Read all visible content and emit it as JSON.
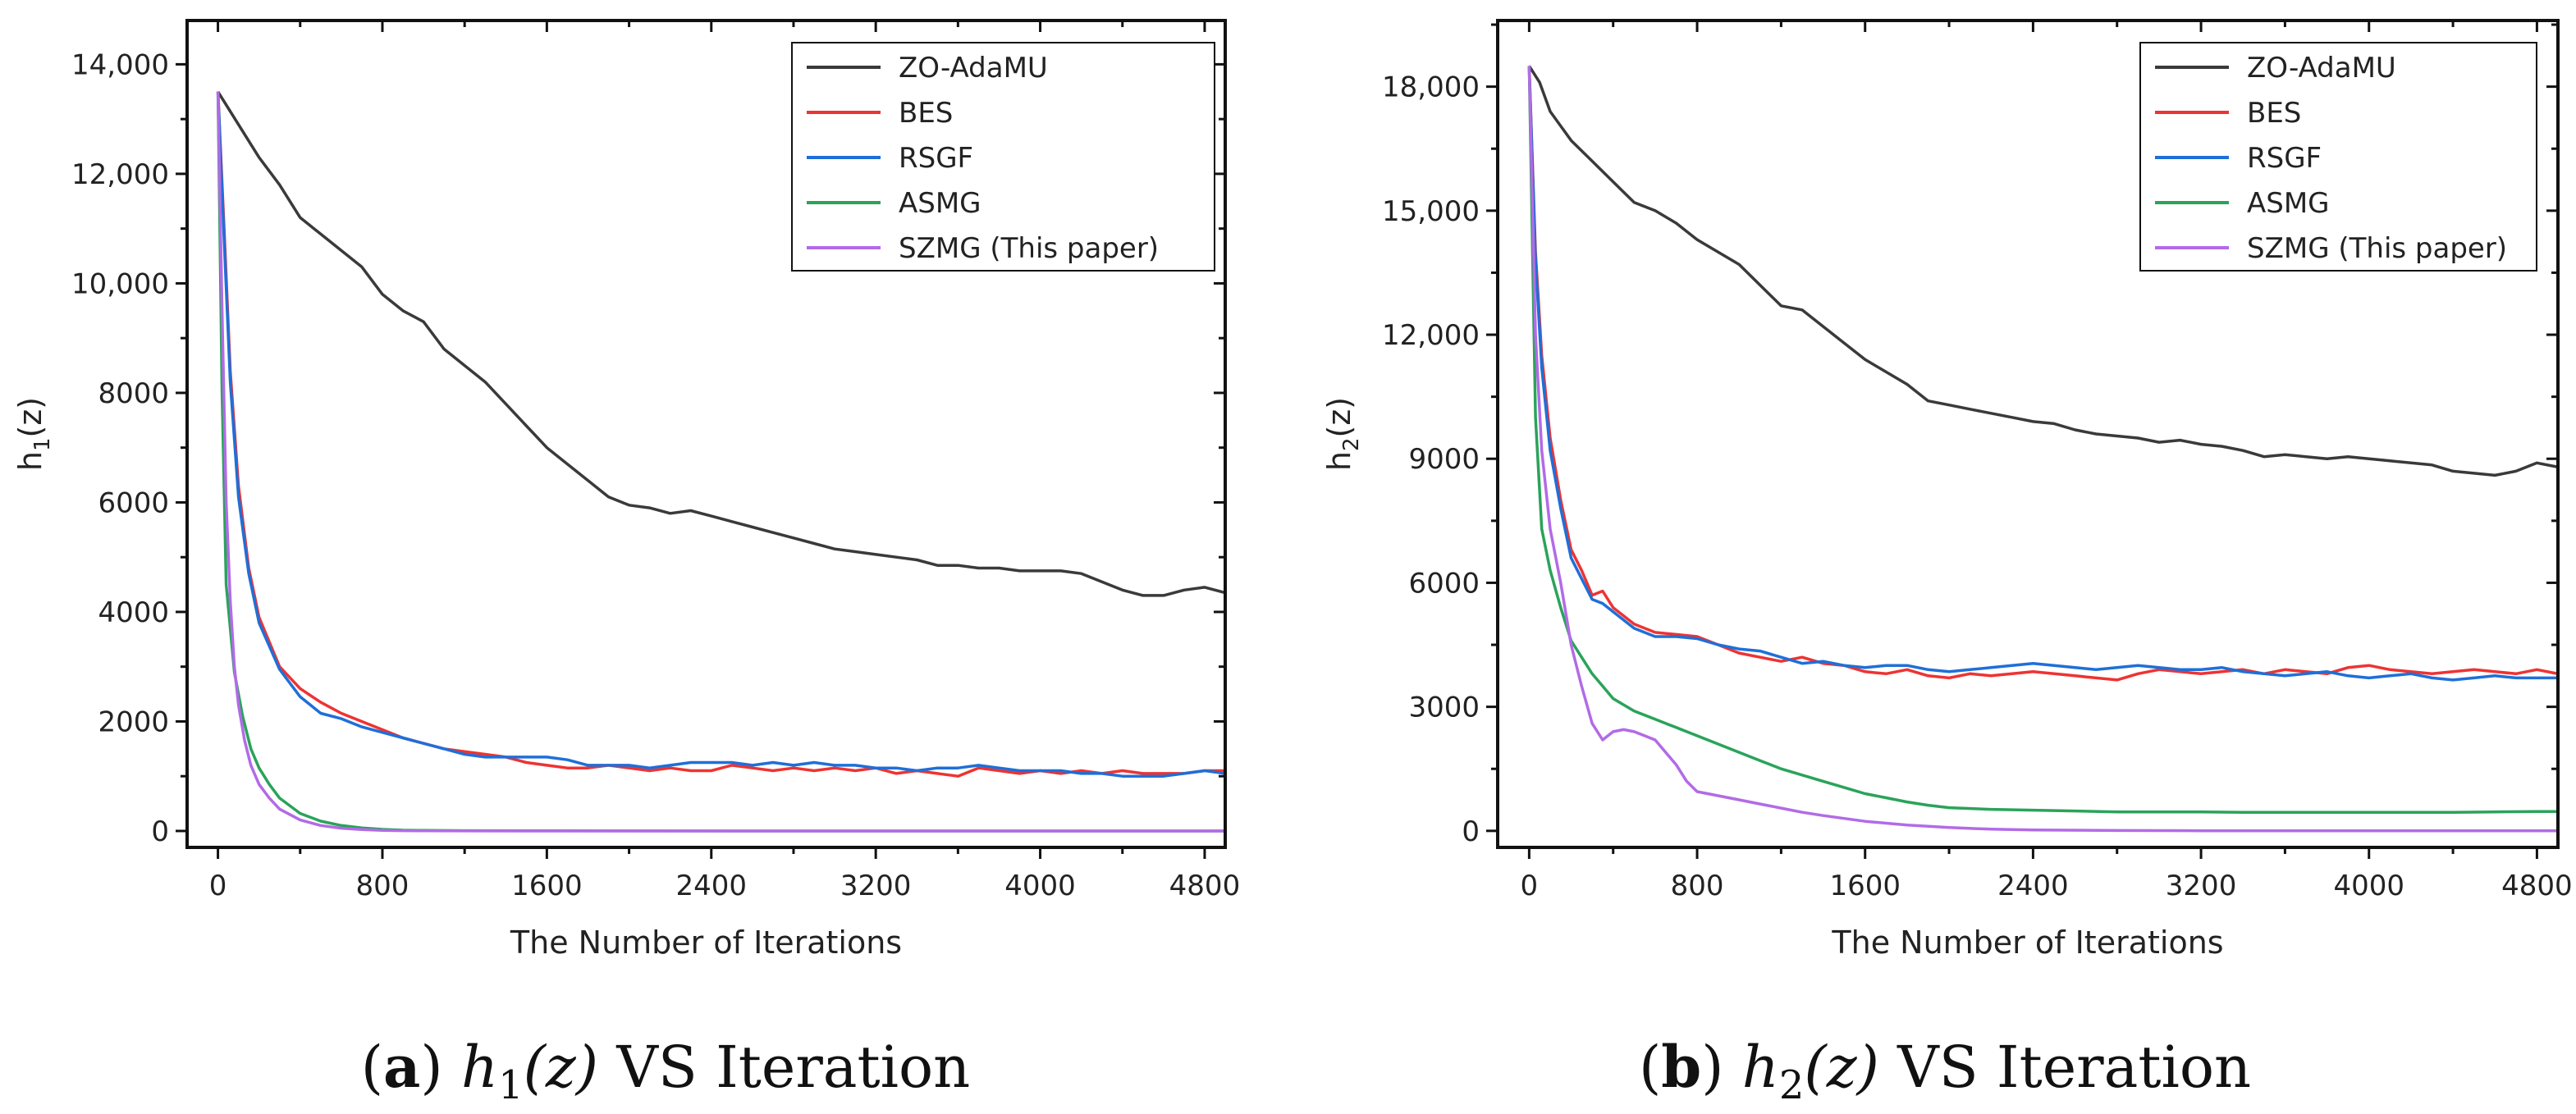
{
  "colors": {
    "ZO-AdaMU": "#3a3a3a",
    "BES": "#ee3333",
    "RSGF": "#1f6fd8",
    "ASMG": "#2aa35a",
    "SZMG": "#b26be6"
  },
  "chart_data": [
    {
      "type": "line",
      "id": "a",
      "xlabel": "The Number of Iterations",
      "ylabel": "h1(z)",
      "ylabel_main": "h",
      "ylabel_sub": "1",
      "ylabel_tail": "(z)",
      "xlim": [
        -150,
        4900
      ],
      "ylim": [
        -300,
        14800
      ],
      "xticks": [
        0,
        800,
        1600,
        2400,
        3200,
        4000,
        4800
      ],
      "xtick_labels": [
        "0",
        "800",
        "1600",
        "2400",
        "3200",
        "4000",
        "4800"
      ],
      "yticks": [
        0,
        2000,
        4000,
        6000,
        8000,
        10000,
        12000,
        14000
      ],
      "ytick_labels": [
        "0",
        "2000",
        "4000",
        "6000",
        "8000",
        "10,000",
        "12,000",
        "14,000"
      ],
      "legend_position": "top-right",
      "caption": {
        "label": "(a)",
        "func": "h",
        "sub": "1",
        "arg": "(z)",
        "rest": " VS Iteration"
      },
      "series": [
        {
          "name": "ZO-AdaMU",
          "x": [
            0,
            50,
            100,
            200,
            300,
            400,
            500,
            600,
            700,
            800,
            900,
            1000,
            1100,
            1200,
            1300,
            1400,
            1500,
            1600,
            1700,
            1800,
            1900,
            2000,
            2100,
            2200,
            2300,
            2400,
            2500,
            2600,
            2700,
            2800,
            2900,
            3000,
            3100,
            3200,
            3300,
            3400,
            3500,
            3600,
            3700,
            3800,
            3900,
            4000,
            4100,
            4200,
            4300,
            4400,
            4500,
            4600,
            4700,
            4800,
            4900
          ],
          "y": [
            13500,
            13200,
            12900,
            12300,
            11800,
            11200,
            10900,
            10600,
            10300,
            9800,
            9500,
            9300,
            8800,
            8500,
            8200,
            7800,
            7400,
            7000,
            6700,
            6400,
            6100,
            5950,
            5900,
            5800,
            5850,
            5750,
            5650,
            5550,
            5450,
            5350,
            5250,
            5150,
            5100,
            5050,
            5000,
            4950,
            4850,
            4850,
            4800,
            4800,
            4750,
            4750,
            4750,
            4700,
            4550,
            4400,
            4300,
            4300,
            4400,
            4450,
            4350
          ]
        },
        {
          "name": "BES",
          "x": [
            0,
            30,
            60,
            100,
            150,
            200,
            300,
            400,
            500,
            600,
            700,
            800,
            900,
            1000,
            1100,
            1200,
            1300,
            1400,
            1500,
            1600,
            1700,
            1800,
            1900,
            2000,
            2100,
            2200,
            2300,
            2400,
            2500,
            2600,
            2700,
            2800,
            2900,
            3000,
            3100,
            3200,
            3300,
            3400,
            3500,
            3600,
            3700,
            3800,
            3900,
            4000,
            4100,
            4200,
            4300,
            4400,
            4500,
            4600,
            4700,
            4800,
            4900
          ],
          "y": [
            13500,
            11000,
            8400,
            6300,
            4800,
            3900,
            3000,
            2600,
            2350,
            2150,
            2000,
            1850,
            1700,
            1600,
            1500,
            1450,
            1400,
            1350,
            1250,
            1200,
            1150,
            1150,
            1200,
            1150,
            1100,
            1150,
            1100,
            1100,
            1200,
            1150,
            1100,
            1150,
            1100,
            1150,
            1100,
            1150,
            1050,
            1100,
            1050,
            1000,
            1150,
            1100,
            1050,
            1100,
            1050,
            1100,
            1050,
            1100,
            1050,
            1050,
            1050,
            1100,
            1100
          ]
        },
        {
          "name": "RSGF",
          "x": [
            0,
            30,
            60,
            100,
            150,
            200,
            300,
            400,
            500,
            600,
            700,
            800,
            900,
            1000,
            1100,
            1200,
            1300,
            1400,
            1500,
            1600,
            1700,
            1800,
            1900,
            2000,
            2100,
            2200,
            2300,
            2400,
            2500,
            2600,
            2700,
            2800,
            2900,
            3000,
            3100,
            3200,
            3300,
            3400,
            3500,
            3600,
            3700,
            3800,
            3900,
            4000,
            4100,
            4200,
            4300,
            4400,
            4500,
            4600,
            4700,
            4800,
            4900
          ],
          "y": [
            13500,
            10800,
            8200,
            6100,
            4700,
            3800,
            2950,
            2450,
            2150,
            2050,
            1900,
            1800,
            1700,
            1600,
            1500,
            1400,
            1350,
            1350,
            1350,
            1350,
            1300,
            1200,
            1200,
            1200,
            1150,
            1200,
            1250,
            1250,
            1250,
            1200,
            1250,
            1200,
            1250,
            1200,
            1200,
            1150,
            1150,
            1100,
            1150,
            1150,
            1200,
            1150,
            1100,
            1100,
            1100,
            1050,
            1050,
            1000,
            1000,
            1000,
            1050,
            1100,
            1050
          ]
        },
        {
          "name": "ASMG",
          "x": [
            0,
            20,
            40,
            80,
            120,
            160,
            200,
            250,
            300,
            400,
            500,
            600,
            700,
            800,
            900,
            1000,
            1200,
            1600,
            2000,
            3000,
            4000,
            4900
          ],
          "y": [
            13500,
            8000,
            4500,
            2900,
            2100,
            1500,
            1150,
            850,
            600,
            320,
            180,
            100,
            55,
            30,
            15,
            10,
            5,
            2,
            1,
            0,
            0,
            0
          ]
        },
        {
          "name": "SZMG (This paper)",
          "x": [
            0,
            20,
            40,
            60,
            80,
            100,
            130,
            160,
            200,
            250,
            300,
            400,
            500,
            600,
            700,
            800,
            900,
            1000,
            1200,
            1600,
            2000,
            3000,
            4000,
            4900
          ],
          "y": [
            13500,
            9500,
            6000,
            4200,
            3000,
            2300,
            1650,
            1200,
            850,
            600,
            400,
            200,
            100,
            50,
            25,
            12,
            6,
            3,
            1,
            0,
            0,
            0,
            0,
            0
          ]
        }
      ]
    },
    {
      "type": "line",
      "id": "b",
      "xlabel": "The Number of Iterations",
      "ylabel": "h2(z)",
      "ylabel_main": "h",
      "ylabel_sub": "2",
      "ylabel_tail": "(z)",
      "xlim": [
        -150,
        4900
      ],
      "ylim": [
        -400,
        19600
      ],
      "xticks": [
        0,
        800,
        1600,
        2400,
        3200,
        4000,
        4800
      ],
      "xtick_labels": [
        "0",
        "800",
        "1600",
        "2400",
        "3200",
        "4000",
        "4800"
      ],
      "yticks": [
        0,
        3000,
        6000,
        9000,
        12000,
        15000,
        18000
      ],
      "ytick_labels": [
        "0",
        "3000",
        "6000",
        "9000",
        "12,000",
        "15,000",
        "18,000"
      ],
      "legend_position": "top-right",
      "caption": {
        "label": "(b)",
        "func": "h",
        "sub": "2",
        "arg": "(z)",
        "rest": " VS Iteration"
      },
      "series": [
        {
          "name": "ZO-AdaMU",
          "x": [
            0,
            50,
            100,
            200,
            300,
            400,
            500,
            600,
            700,
            800,
            900,
            1000,
            1100,
            1200,
            1300,
            1400,
            1500,
            1600,
            1700,
            1800,
            1900,
            2000,
            2100,
            2200,
            2300,
            2400,
            2500,
            2600,
            2700,
            2800,
            2900,
            3000,
            3100,
            3200,
            3300,
            3400,
            3500,
            3600,
            3700,
            3800,
            3900,
            4000,
            4100,
            4200,
            4300,
            4400,
            4500,
            4600,
            4700,
            4800,
            4900
          ],
          "y": [
            18500,
            18100,
            17400,
            16700,
            16200,
            15700,
            15200,
            15000,
            14700,
            14300,
            14000,
            13700,
            13200,
            12700,
            12600,
            12200,
            11800,
            11400,
            11100,
            10800,
            10400,
            10300,
            10200,
            10100,
            10000,
            9900,
            9850,
            9700,
            9600,
            9550,
            9500,
            9400,
            9450,
            9350,
            9300,
            9200,
            9050,
            9100,
            9050,
            9000,
            9050,
            9000,
            8950,
            8900,
            8850,
            8700,
            8650,
            8600,
            8700,
            8900,
            8800
          ]
        },
        {
          "name": "BES",
          "x": [
            0,
            30,
            60,
            100,
            150,
            200,
            250,
            300,
            350,
            400,
            500,
            600,
            700,
            800,
            900,
            1000,
            1100,
            1200,
            1300,
            1400,
            1500,
            1600,
            1700,
            1800,
            1900,
            2000,
            2100,
            2200,
            2300,
            2400,
            2500,
            2600,
            2700,
            2800,
            2900,
            3000,
            3100,
            3200,
            3300,
            3400,
            3500,
            3600,
            3700,
            3800,
            3900,
            4000,
            4100,
            4200,
            4300,
            4400,
            4500,
            4600,
            4700,
            4800,
            4900
          ],
          "y": [
            18500,
            14000,
            11500,
            9500,
            8000,
            6800,
            6300,
            5700,
            5800,
            5400,
            5000,
            4800,
            4750,
            4700,
            4500,
            4300,
            4200,
            4100,
            4200,
            4050,
            4000,
            3850,
            3800,
            3900,
            3750,
            3700,
            3800,
            3750,
            3800,
            3850,
            3800,
            3750,
            3700,
            3650,
            3800,
            3900,
            3850,
            3800,
            3850,
            3900,
            3800,
            3900,
            3850,
            3800,
            3950,
            4000,
            3900,
            3850,
            3800,
            3850,
            3900,
            3850,
            3800,
            3900,
            3800
          ]
        },
        {
          "name": "RSGF",
          "x": [
            0,
            30,
            60,
            100,
            150,
            200,
            250,
            300,
            350,
            400,
            500,
            600,
            700,
            800,
            900,
            1000,
            1100,
            1200,
            1300,
            1400,
            1500,
            1600,
            1700,
            1800,
            1900,
            2000,
            2100,
            2200,
            2300,
            2400,
            2500,
            2600,
            2700,
            2800,
            2900,
            3000,
            3100,
            3200,
            3300,
            3400,
            3500,
            3600,
            3700,
            3800,
            3900,
            4000,
            4100,
            4200,
            4300,
            4400,
            4500,
            4600,
            4700,
            4800,
            4900
          ],
          "y": [
            18500,
            13800,
            11200,
            9200,
            7800,
            6600,
            6100,
            5600,
            5500,
            5300,
            4900,
            4700,
            4700,
            4650,
            4500,
            4400,
            4350,
            4200,
            4050,
            4100,
            4000,
            3950,
            4000,
            4000,
            3900,
            3850,
            3900,
            3950,
            4000,
            4050,
            4000,
            3950,
            3900,
            3950,
            4000,
            3950,
            3900,
            3900,
            3950,
            3850,
            3800,
            3750,
            3800,
            3850,
            3750,
            3700,
            3750,
            3800,
            3700,
            3650,
            3700,
            3750,
            3700,
            3700,
            3700
          ]
        },
        {
          "name": "ASMG",
          "x": [
            0,
            30,
            60,
            100,
            150,
            200,
            250,
            300,
            350,
            400,
            500,
            600,
            700,
            800,
            900,
            1000,
            1100,
            1200,
            1300,
            1400,
            1500,
            1600,
            1700,
            1800,
            1900,
            2000,
            2200,
            2400,
            2600,
            2800,
            3000,
            3200,
            3400,
            3600,
            3800,
            4000,
            4200,
            4400,
            4600,
            4800,
            4900
          ],
          "y": [
            18500,
            10000,
            7300,
            6300,
            5400,
            4600,
            4200,
            3800,
            3500,
            3200,
            2900,
            2700,
            2500,
            2300,
            2100,
            1900,
            1700,
            1500,
            1350,
            1200,
            1050,
            900,
            800,
            700,
            620,
            560,
            520,
            500,
            480,
            460,
            460,
            460,
            450,
            450,
            450,
            450,
            450,
            450,
            460,
            470,
            470
          ]
        },
        {
          "name": "SZMG (This paper)",
          "x": [
            0,
            30,
            60,
            100,
            150,
            200,
            250,
            300,
            350,
            400,
            450,
            500,
            550,
            600,
            650,
            700,
            750,
            800,
            900,
            1000,
            1100,
            1200,
            1300,
            1400,
            1500,
            1600,
            1800,
            2000,
            2200,
            2400,
            2800,
            3200,
            4000,
            4900
          ],
          "y": [
            18500,
            12000,
            9200,
            7300,
            6000,
            4500,
            3500,
            2600,
            2200,
            2400,
            2450,
            2400,
            2300,
            2200,
            1900,
            1600,
            1200,
            950,
            850,
            750,
            650,
            550,
            450,
            370,
            300,
            230,
            140,
            80,
            40,
            20,
            8,
            3,
            1,
            0
          ]
        }
      ]
    }
  ]
}
